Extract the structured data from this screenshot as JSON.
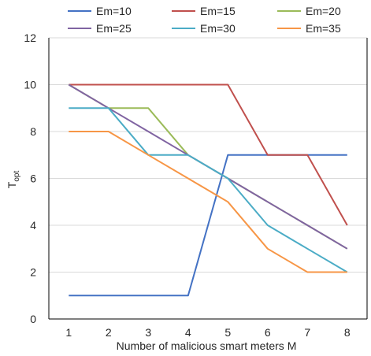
{
  "chart_data": {
    "type": "line",
    "x": [
      1,
      2,
      3,
      4,
      5,
      6,
      7,
      8
    ],
    "xlabel": "Number of malicious smart meters M",
    "ylabel": "T",
    "ylabel_sub": "opt",
    "ylim": [
      0,
      12
    ],
    "yticks": [
      0,
      2,
      4,
      6,
      8,
      10,
      12
    ],
    "grid": "horizontal",
    "legend_position": "top",
    "series": [
      {
        "name": "Em=10",
        "color": "#4472C4",
        "values": [
          1,
          1,
          1,
          1,
          7,
          7,
          7,
          7
        ]
      },
      {
        "name": "Em=15",
        "color": "#C0504D",
        "values": [
          10,
          10,
          10,
          10,
          10,
          7,
          7,
          4
        ]
      },
      {
        "name": "Em=20",
        "color": "#9BBB59",
        "values": [
          10,
          9,
          9,
          7,
          6,
          5,
          4,
          3
        ]
      },
      {
        "name": "Em=25",
        "color": "#8064A2",
        "values": [
          10,
          9,
          8,
          7,
          6,
          5,
          4,
          3
        ]
      },
      {
        "name": "Em=30",
        "color": "#4BACC6",
        "values": [
          9,
          9,
          7,
          7,
          6,
          4,
          3,
          2
        ]
      },
      {
        "name": "Em=35",
        "color": "#F79646",
        "values": [
          8,
          8,
          7,
          6,
          5,
          3,
          2,
          2
        ]
      }
    ]
  }
}
